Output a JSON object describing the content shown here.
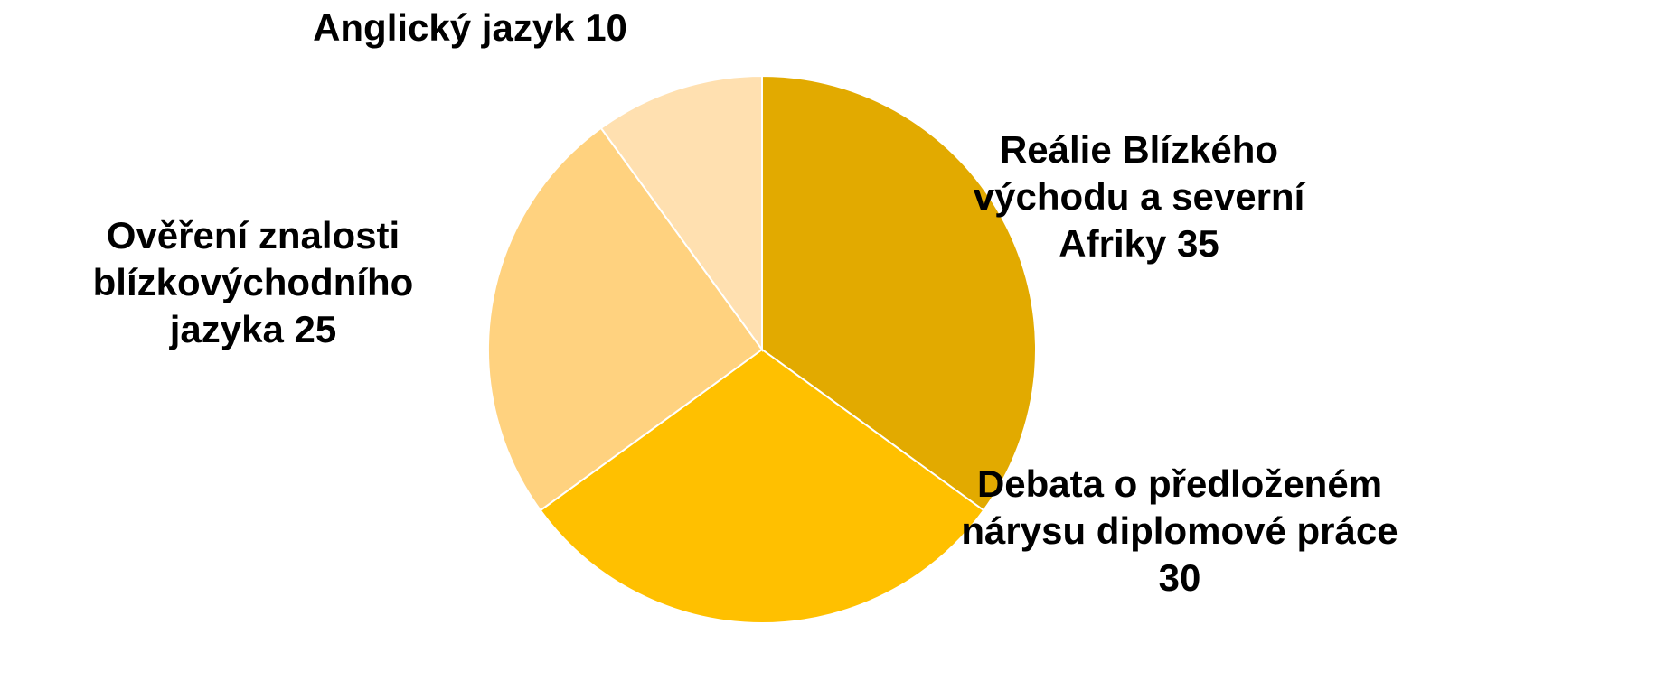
{
  "chart_data": {
    "type": "pie",
    "title": "",
    "slices": [
      {
        "label": "Reálie Blízkého\nvýchodu a severní\nAfriky 35",
        "value": 35,
        "color": "#E2AA00"
      },
      {
        "label": "Debata o předloženém\nnárysu diplomové práce\n30",
        "value": 30,
        "color": "#FFC000"
      },
      {
        "label": "Ověření znalosti\nblízkovýchodního\njazyka 25",
        "value": 25,
        "color": "#FFD27F"
      },
      {
        "label": "Anglický jazyk 10",
        "value": 10,
        "color": "#FFE0B0"
      }
    ],
    "start_angle_deg": 0,
    "direction": "clockwise",
    "legend": "none"
  }
}
